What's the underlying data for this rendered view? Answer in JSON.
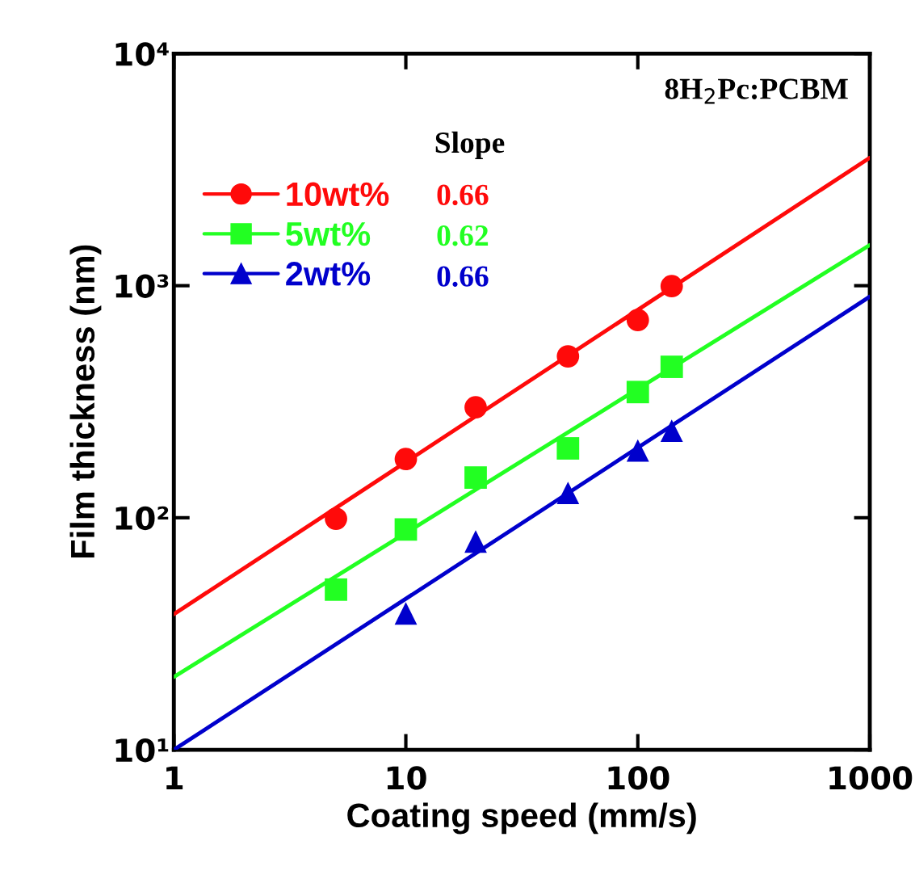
{
  "chart_data": {
    "type": "scatter",
    "title": "8H$_{2}$Pc:PCBM",
    "xlabel": "Coating speed (mm/s)",
    "ylabel": "Film thickness (nm)",
    "log": "xy",
    "xlim": [
      1,
      1000
    ],
    "ylim": [
      10,
      10000
    ],
    "xticks": [
      1,
      10,
      100,
      1000
    ],
    "yticks": [
      {
        "value": 10,
        "label": "10¹"
      },
      {
        "value": 100,
        "label": "10²"
      },
      {
        "value": 1000,
        "label": "10³"
      },
      {
        "value": 10000,
        "label": "10⁴"
      }
    ],
    "legend": "top left",
    "legend_title": "Slope",
    "annotations": [
      "0.66",
      "0.62",
      "0.66"
    ],
    "grid": false,
    "series": [
      {
        "name": "10wt%",
        "color": "#ff0a0a",
        "marker": "circle",
        "x": [
          5,
          10,
          20,
          50,
          100,
          140
        ],
        "values": [
          99,
          179,
          299,
          496,
          711,
          995
        ]
      },
      {
        "name": "5wt%",
        "color": "#22ff22",
        "marker": "square",
        "x": [
          5,
          10,
          20,
          50,
          100,
          140
        ],
        "values": [
          49,
          89,
          149,
          199,
          348,
          447
        ]
      },
      {
        "name": "2wt%",
        "color": "#0000cc",
        "marker": "triangle",
        "x": [
          10,
          20,
          50,
          100,
          140
        ],
        "values": [
          38.7,
          79,
          128,
          195,
          237
        ]
      },
      {
        "type": "line",
        "color": "#ff0a0a",
        "x": [
          1,
          1000
        ],
        "values": [
          38.4,
          3560
        ]
      },
      {
        "type": "line",
        "color": "#22ff22",
        "x": [
          1,
          1000
        ],
        "values": [
          20.6,
          1497
        ]
      },
      {
        "type": "line",
        "color": "#0000cc",
        "x": [
          1,
          1000
        ],
        "values": [
          10,
          897
        ]
      }
    ]
  }
}
